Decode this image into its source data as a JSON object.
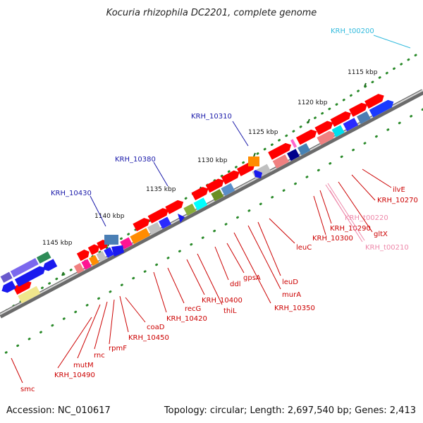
{
  "title": "Kocuria rhizophila DC2201, complete genome",
  "footer": {
    "accession": "Accession: NC_010617",
    "summary": "Topology: circular; Length: 2,697,540 bp; Genes: 2,413"
  },
  "scale_labels": [
    "1115 kbp",
    "1120 kbp",
    "1125 kbp",
    "1130 kbp",
    "1135 kbp",
    "1140 kbp",
    "1145 kbp"
  ],
  "gene_labels_top": [
    {
      "text": "KRH_t00200",
      "color": "#33bbdd"
    },
    {
      "text": "KRH_10310",
      "color": "#1a1aaa"
    },
    {
      "text": "KRH_10380",
      "color": "#1a1aaa"
    },
    {
      "text": "KRH_10430",
      "color": "#1a1aaa"
    }
  ],
  "gene_labels_bottom": [
    {
      "text": "ilvE",
      "color": "#cc0000"
    },
    {
      "text": "KRH_10270",
      "color": "#cc0000"
    },
    {
      "text": "KRH_t00220",
      "color": "#ee88aa"
    },
    {
      "text": "gltX",
      "color": "#cc0000"
    },
    {
      "text": "KRH_10290",
      "color": "#cc0000"
    },
    {
      "text": "KRH_t00210",
      "color": "#ee88aa"
    },
    {
      "text": "KRH_10300",
      "color": "#cc0000"
    },
    {
      "text": "leuC",
      "color": "#cc0000"
    },
    {
      "text": "leuD",
      "color": "#cc0000"
    },
    {
      "text": "murA",
      "color": "#cc0000"
    },
    {
      "text": "KRH_10350",
      "color": "#cc0000"
    },
    {
      "text": "gpsA",
      "color": "#cc0000"
    },
    {
      "text": "ddl",
      "color": "#cc0000"
    },
    {
      "text": "thiL",
      "color": "#cc0000"
    },
    {
      "text": "KRH_10400",
      "color": "#cc0000"
    },
    {
      "text": "recG",
      "color": "#cc0000"
    },
    {
      "text": "KRH_10420",
      "color": "#cc0000"
    },
    {
      "text": "coaD",
      "color": "#cc0000"
    },
    {
      "text": "KRH_10450",
      "color": "#cc0000"
    },
    {
      "text": "rpmF",
      "color": "#cc0000"
    },
    {
      "text": "rnc",
      "color": "#cc0000"
    },
    {
      "text": "mutM",
      "color": "#cc0000"
    },
    {
      "text": "KRH_10490",
      "color": "#cc0000"
    },
    {
      "text": "smc",
      "color": "#cc0000"
    }
  ]
}
